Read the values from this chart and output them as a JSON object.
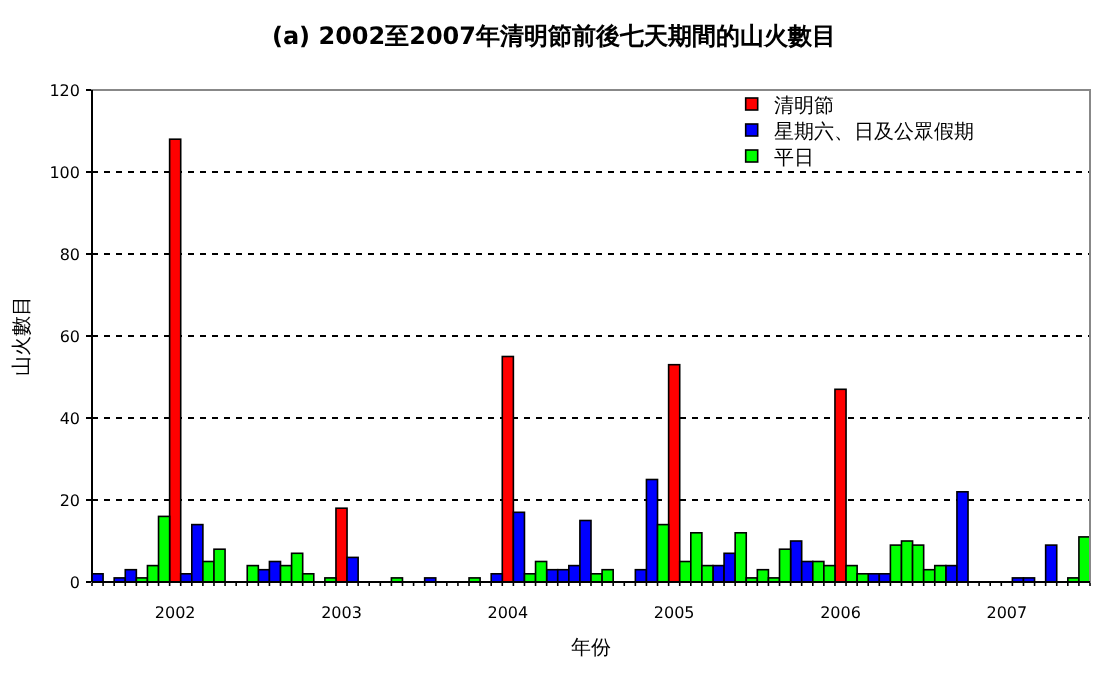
{
  "chart_data": {
    "type": "bar",
    "title": "(a) 2002至2007年清明節前後七天期間的山火數目",
    "xlabel": "年份",
    "ylabel": "山火數目",
    "categories": [
      null,
      null,
      null,
      null,
      null,
      null,
      null,
      "2002",
      null,
      null,
      null,
      null,
      null,
      null,
      null,
      null,
      null,
      null,
      null,
      null,
      null,
      null,
      "2003",
      null,
      null,
      null,
      null,
      null,
      null,
      null,
      null,
      null,
      null,
      null,
      null,
      null,
      null,
      "2004",
      null,
      null,
      null,
      null,
      null,
      null,
      null,
      null,
      null,
      null,
      null,
      null,
      null,
      null,
      "2005",
      null,
      null,
      null,
      null,
      null,
      null,
      null,
      null,
      null,
      null,
      null,
      null,
      null,
      null,
      "2006",
      null,
      null,
      null,
      null,
      null,
      null,
      null,
      null,
      null,
      null,
      null,
      null,
      null,
      null,
      "2007",
      null,
      null,
      null,
      null,
      null,
      null,
      null
    ],
    "series": [
      {
        "name": "清明節",
        "color": "#ff0000",
        "values": [
          null,
          null,
          null,
          null,
          null,
          null,
          null,
          108,
          null,
          null,
          null,
          null,
          null,
          null,
          null,
          null,
          null,
          null,
          null,
          null,
          null,
          null,
          18,
          null,
          null,
          null,
          null,
          null,
          null,
          null,
          null,
          null,
          null,
          null,
          null,
          null,
          null,
          55,
          null,
          null,
          null,
          null,
          null,
          null,
          null,
          null,
          null,
          null,
          null,
          null,
          null,
          null,
          53,
          null,
          null,
          null,
          null,
          null,
          null,
          null,
          null,
          null,
          null,
          null,
          null,
          null,
          null,
          47,
          null,
          null,
          null,
          null,
          null,
          null,
          null,
          null,
          null,
          null,
          null,
          null,
          null,
          null,
          null,
          null,
          null,
          null,
          null,
          null,
          null,
          null
        ]
      },
      {
        "name": "星期六、日及公眾假期",
        "color": "#0000ff",
        "values": [
          2,
          null,
          1,
          3,
          null,
          null,
          null,
          null,
          2,
          14,
          null,
          null,
          null,
          null,
          null,
          3,
          5,
          null,
          null,
          null,
          null,
          null,
          null,
          6,
          null,
          null,
          null,
          null,
          null,
          null,
          1,
          null,
          null,
          null,
          null,
          null,
          2,
          null,
          17,
          null,
          null,
          3,
          3,
          4,
          15,
          null,
          null,
          null,
          null,
          3,
          25,
          null,
          null,
          null,
          null,
          null,
          4,
          7,
          null,
          null,
          null,
          null,
          null,
          10,
          5,
          null,
          null,
          null,
          null,
          null,
          2,
          2,
          null,
          null,
          null,
          null,
          null,
          4,
          22,
          null,
          null,
          null,
          null,
          1,
          1,
          null,
          9,
          null,
          null,
          null
        ]
      },
      {
        "name": "平日",
        "color": "#00ff00",
        "values": [
          null,
          null,
          null,
          null,
          1,
          4,
          16,
          null,
          null,
          null,
          5,
          8,
          null,
          null,
          4,
          null,
          null,
          4,
          7,
          2,
          null,
          1,
          null,
          null,
          null,
          null,
          null,
          1,
          null,
          null,
          null,
          null,
          null,
          null,
          1,
          null,
          null,
          null,
          null,
          2,
          5,
          null,
          null,
          null,
          null,
          2,
          3,
          null,
          null,
          null,
          null,
          14,
          null,
          5,
          12,
          4,
          null,
          null,
          12,
          1,
          3,
          1,
          8,
          null,
          null,
          5,
          4,
          null,
          4,
          2,
          null,
          null,
          9,
          10,
          9,
          3,
          4,
          null,
          null,
          null,
          null,
          null,
          null,
          null,
          null,
          null,
          null,
          null,
          1,
          11
        ]
      }
    ],
    "ylim": [
      0,
      120
    ],
    "yticks": [
      0,
      20,
      40,
      60,
      80,
      100,
      120
    ],
    "grid": "y",
    "legend": "top"
  }
}
